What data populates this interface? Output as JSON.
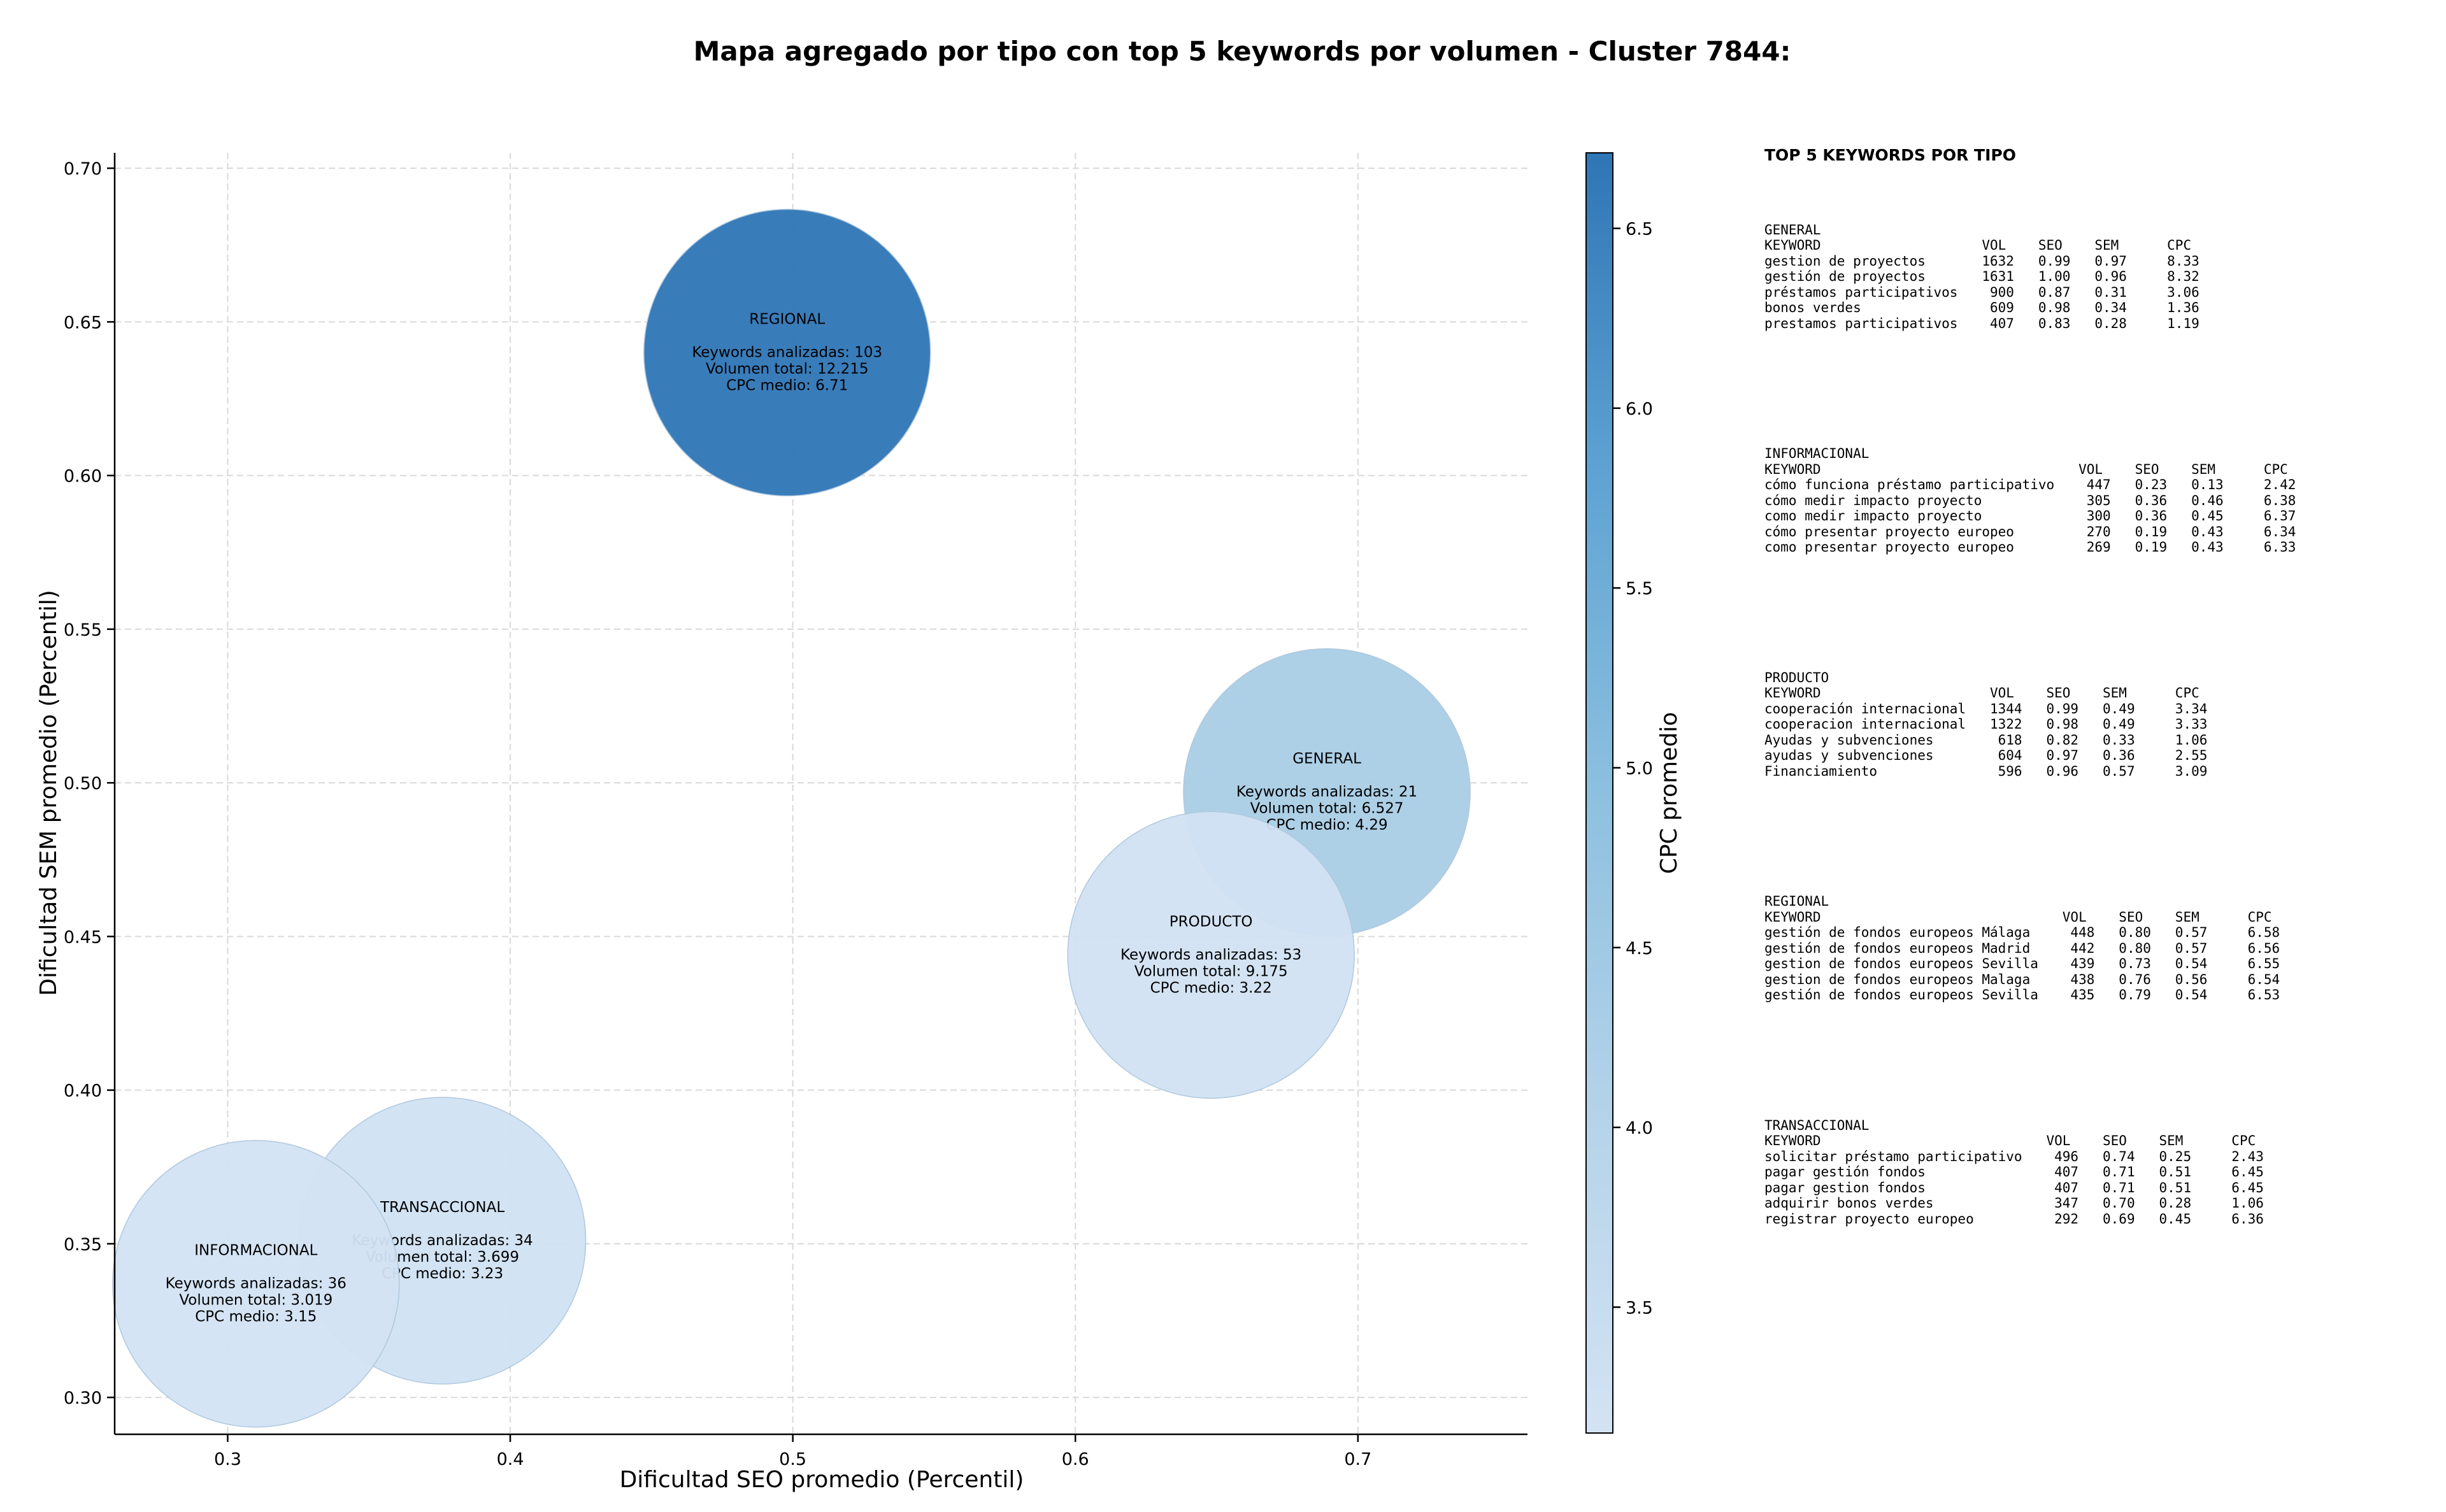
{
  "chart_data": {
    "type": "scatter",
    "variant": "bubble",
    "title": "Mapa agregado por tipo con top 5 keywords por volumen - Cluster 7844:",
    "xlabel": "Dificultad SEO promedio (Percentil)",
    "ylabel": "Dificultad SEM promedio (Percentil)",
    "xlim": [
      0.26,
      0.76
    ],
    "ylim": [
      0.288,
      0.705
    ],
    "xticks": [
      "0.3",
      "0.4",
      "0.5",
      "0.6",
      "0.7"
    ],
    "yticks": [
      "0.30",
      "0.35",
      "0.40",
      "0.45",
      "0.50",
      "0.55",
      "0.60",
      "0.65",
      "0.70"
    ],
    "grid": true,
    "colorbar": {
      "label": "CPC promedio",
      "min": 3.15,
      "max": 6.71,
      "ticks": [
        "3.5",
        "4.0",
        "4.5",
        "5.0",
        "5.5",
        "6.0",
        "6.5"
      ],
      "colormap": "Blues",
      "color_low": "#d0e1f2",
      "color_high": "#2e75b6"
    },
    "points": [
      {
        "name": "REGIONAL",
        "x": 0.498,
        "y": 0.64,
        "keywords_label": "Keywords analizadas: 103",
        "volume_label": "Volumen total: 12.215",
        "cpc_label": "CPC medio: 6.71",
        "keywords": 103,
        "volume": 12215,
        "cpc": 6.71
      },
      {
        "name": "GENERAL",
        "x": 0.689,
        "y": 0.497,
        "keywords_label": "Keywords analizadas: 21",
        "volume_label": "Volumen total: 6.527",
        "cpc_label": "CPC medio: 4.29",
        "keywords": 21,
        "volume": 6527,
        "cpc": 4.29
      },
      {
        "name": "PRODUCTO",
        "x": 0.648,
        "y": 0.444,
        "keywords_label": "Keywords analizadas: 53",
        "volume_label": "Volumen total: 9.175",
        "cpc_label": "CPC medio: 3.22",
        "keywords": 53,
        "volume": 9175,
        "cpc": 3.22
      },
      {
        "name": "TRANSACCIONAL",
        "x": 0.376,
        "y": 0.351,
        "keywords_label": "Keywords analizadas: 34",
        "volume_label": "Volumen total: 3.699",
        "cpc_label": "CPC medio: 3.23",
        "keywords": 34,
        "volume": 3699,
        "cpc": 3.23
      },
      {
        "name": "INFORMACIONAL",
        "x": 0.31,
        "y": 0.337,
        "keywords_label": "Keywords analizadas: 36",
        "volume_label": "Volumen total: 3.019",
        "cpc_label": "CPC medio: 3.15",
        "keywords": 36,
        "volume": 3019,
        "cpc": 3.15
      }
    ]
  },
  "side_panel": {
    "heading": "TOP 5 KEYWORDS POR TIPO",
    "groups": [
      {
        "title": "GENERAL",
        "header": "KEYWORD                    VOL    SEO    SEM      CPC",
        "rows": [
          "gestion de proyectos       1632   0.99   0.97     8.33",
          "gestión de proyectos       1631   1.00   0.96     8.32",
          "préstamos participativos    900   0.87   0.31     3.06",
          "bonos verdes                609   0.98   0.34     1.36",
          "prestamos participativos    407   0.83   0.28     1.19"
        ]
      },
      {
        "title": "INFORMACIONAL",
        "header": "KEYWORD                                VOL    SEO    SEM      CPC",
        "rows": [
          "cómo funciona préstamo participativo    447   0.23   0.13     2.42",
          "cómo medir impacto proyecto             305   0.36   0.46     6.38",
          "como medir impacto proyecto             300   0.36   0.45     6.37",
          "cómo presentar proyecto europeo         270   0.19   0.43     6.34",
          "como presentar proyecto europeo         269   0.19   0.43     6.33"
        ]
      },
      {
        "title": "PRODUCTO",
        "header": "KEYWORD                     VOL    SEO    SEM      CPC",
        "rows": [
          "cooperación internacional   1344   0.99   0.49     3.34",
          "cooperacion internacional   1322   0.98   0.49     3.33",
          "Ayudas y subvenciones        618   0.82   0.33     1.06",
          "ayudas y subvenciones        604   0.97   0.36     2.55",
          "Financiamiento               596   0.96   0.57     3.09"
        ]
      },
      {
        "title": "REGIONAL",
        "header": "KEYWORD                              VOL    SEO    SEM      CPC",
        "rows": [
          "gestión de fondos europeos Málaga     448   0.80   0.57     6.58",
          "gestión de fondos europeos Madrid     442   0.80   0.57     6.56",
          "gestion de fondos europeos Sevilla    439   0.73   0.54     6.55",
          "gestion de fondos europeos Malaga     438   0.76   0.56     6.54",
          "gestión de fondos europeos Sevilla    435   0.79   0.54     6.53"
        ]
      },
      {
        "title": "TRANSACCIONAL",
        "header": "KEYWORD                            VOL    SEO    SEM      CPC",
        "rows": [
          "solicitar préstamo participativo    496   0.74   0.25     2.43",
          "pagar gestión fondos                407   0.71   0.51     6.45",
          "pagar gestion fondos                407   0.71   0.51     6.45",
          "adquirir bonos verdes               347   0.70   0.28     1.06",
          "registrar proyecto europeo          292   0.69   0.45     6.36"
        ]
      }
    ]
  }
}
